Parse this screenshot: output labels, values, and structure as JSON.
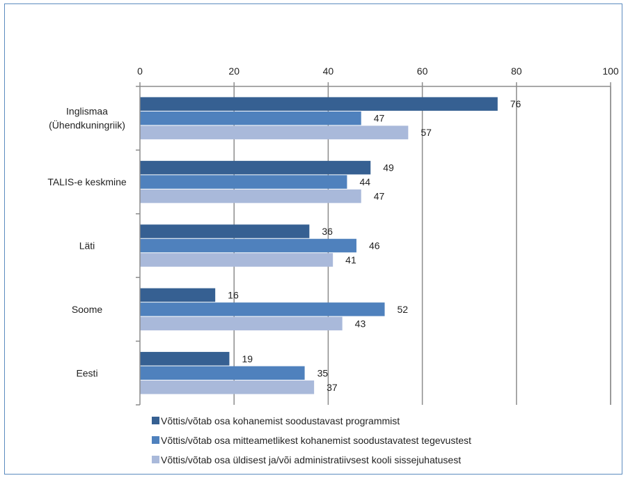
{
  "chart_data": {
    "type": "bar",
    "orientation": "horizontal",
    "categories": [
      [
        "Inglismaa",
        "(Ühendkuningriik)"
      ],
      [
        "TALIS-e keskmine"
      ],
      [
        "Läti"
      ],
      [
        "Soome"
      ],
      [
        "Eesti"
      ]
    ],
    "series": [
      {
        "name": "Võttis/võtab osa kohanemist soodustavast programmist",
        "color": "#366092",
        "values": [
          76,
          49,
          36,
          16,
          19
        ]
      },
      {
        "name": "Võttis/võtab osa mitteametlikest kohanemist soodustavatest tegevustest",
        "color": "#4f81bd",
        "values": [
          47,
          44,
          46,
          52,
          35
        ]
      },
      {
        "name": "Võttis/võtab osa üldisest ja/või administratiivsest kooli sissejuhatusest",
        "color": "#a9b9da",
        "values": [
          57,
          47,
          41,
          43,
          37
        ]
      }
    ],
    "xlim": [
      0,
      100
    ],
    "x_ticks": [
      0,
      20,
      40,
      60,
      80,
      100
    ],
    "x_axis_position": "top",
    "grid": true,
    "legend_position": "bottom",
    "data_labels": true
  }
}
